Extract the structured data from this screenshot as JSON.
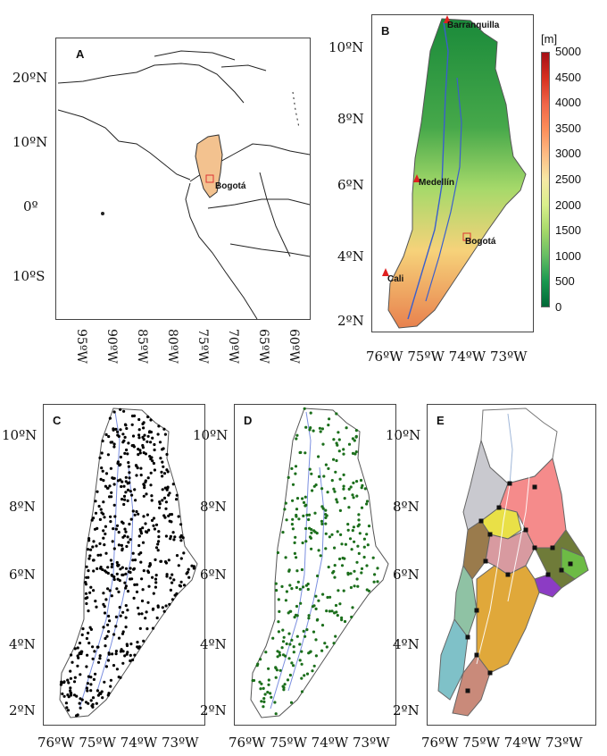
{
  "panels": {
    "a": {
      "label": "A",
      "lat_ticks": [
        "20ºN",
        "10ºN",
        "0º",
        "10ºS"
      ],
      "lon_ticks": [
        "95ºW",
        "90ºW",
        "85ºW",
        "80ºW",
        "75ºW",
        "70ºW",
        "65ºW",
        "60ºW"
      ],
      "city": "Bogotá"
    },
    "b": {
      "label": "B",
      "cities": {
        "barranquilla": "Barranquilla",
        "medellin": "Medellín",
        "bogota": "Bogotá",
        "cali": "Cali"
      }
    },
    "c": {
      "label": "C"
    },
    "d": {
      "label": "D"
    },
    "e": {
      "label": "E"
    }
  },
  "axes": {
    "lat_ticks": [
      "10ºN",
      "8ºN",
      "6ºN",
      "4ºN",
      "2ºN"
    ],
    "lon_ticks": "76ºW 75ºW 74ºW 73ºW"
  },
  "colorbar": {
    "unit": "[m]",
    "ticks": [
      "5000",
      "4500",
      "4000",
      "3500",
      "3000",
      "2500",
      "2000",
      "1500",
      "1000",
      "500",
      "0"
    ],
    "colors": [
      "#a50f15",
      "#d7301f",
      "#ef6548",
      "#fc8d59",
      "#fdbb84",
      "#f6e8a5",
      "#d9ef8b",
      "#a6d96a",
      "#66bd63",
      "#1a9850",
      "#006837"
    ]
  },
  "colors": {
    "stations_c": "#000000",
    "stations_d": "#1b6e1b",
    "river": "#3a5fcd",
    "outline": "#555555"
  }
}
